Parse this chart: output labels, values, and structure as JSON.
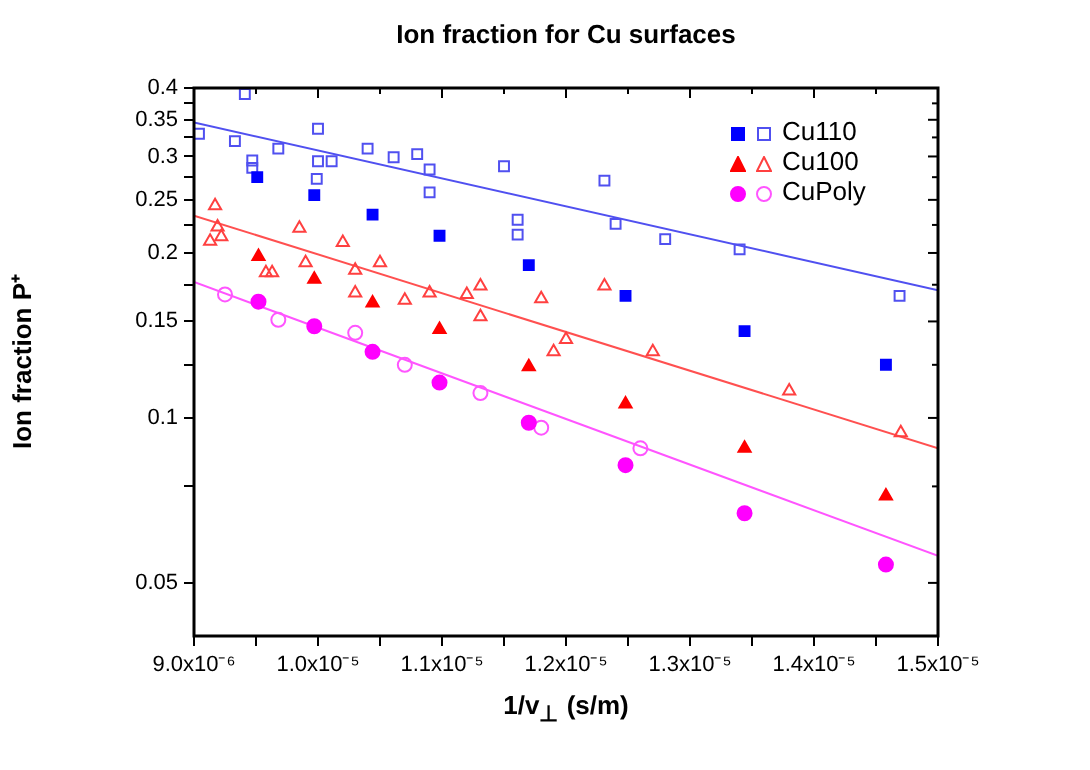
{
  "chart_data": {
    "type": "scatter",
    "title": "Ion fraction for Cu surfaces",
    "xlabel": "1/v$_{⊥}$ (s/m)",
    "ylabel": "Ion fraction P⁺",
    "log": "y",
    "legend": "top right",
    "xlim": [
      9e-06,
      1.5e-05
    ],
    "xticks": [
      {
        "value": 9e-06,
        "label": "9.0x10⁻⁶"
      },
      {
        "value": 9.5e-06,
        "label": null
      },
      {
        "value": 1e-05,
        "label": "1.0x10⁻⁵"
      },
      {
        "value": 1.05e-05,
        "label": null
      },
      {
        "value": 1.1e-05,
        "label": "1.1x10⁻⁵"
      },
      {
        "value": 1.15e-05,
        "label": null
      },
      {
        "value": 1.2e-05,
        "label": "1.2x10⁻⁵"
      },
      {
        "value": 1.25e-05,
        "label": null
      },
      {
        "value": 1.3e-05,
        "label": "1.3x10⁻⁵"
      },
      {
        "value": 1.35e-05,
        "label": null
      },
      {
        "value": 1.4e-05,
        "label": "1.4x10⁻⁵"
      },
      {
        "value": 1.45e-05,
        "label": null
      },
      {
        "value": 1.5e-05,
        "label": "1.5x10⁻⁵"
      }
    ],
    "ylim": [
      0.04,
      0.4
    ],
    "yticks": [
      0.05,
      {
        "value": 0.075,
        "label": null
      },
      0.1,
      {
        "value": 0.125,
        "label": null
      },
      0.15,
      {
        "value": 0.175,
        "label": null
      },
      0.2,
      {
        "value": 0.225,
        "label": null
      },
      0.25,
      {
        "value": 0.275,
        "label": null
      },
      0.3,
      {
        "value": 0.325,
        "label": null
      },
      0.35,
      {
        "value": 0.375,
        "label": null
      },
      0.4
    ],
    "series": [
      {
        "marker": "square",
        "color": "#0000ff",
        "x": [
          9.51e-06,
          9.97e-06,
          1.044e-05,
          1.098e-05,
          1.17e-05,
          1.248e-05,
          1.344e-05,
          1.458e-05
        ],
        "values": [
          0.275,
          0.255,
          0.235,
          0.215,
          0.19,
          0.167,
          0.144,
          0.125
        ]
      },
      {
        "name": "Cu110",
        "marker": "square",
        "color": "#5050f0",
        "x": [
          9.04e-06,
          9.41e-06,
          9.33e-06,
          9.47e-06,
          9.47e-06,
          9.68e-06,
          1e-05,
          1e-05,
          9.99e-06,
          1.011e-05,
          1.04e-05,
          1.061e-05,
          1.08e-05,
          1.09e-05,
          1.09e-05,
          1.15e-05,
          1.161e-05,
          1.161e-05,
          1.231e-05,
          1.24e-05,
          1.28e-05,
          1.34e-05,
          1.469e-05
        ],
        "values": [
          0.33,
          0.39,
          0.32,
          0.295,
          0.286,
          0.31,
          0.337,
          0.294,
          0.273,
          0.294,
          0.31,
          0.299,
          0.303,
          0.284,
          0.258,
          0.288,
          0.23,
          0.216,
          0.271,
          0.226,
          0.212,
          0.203,
          0.167
        ]
      },
      {
        "marker": "triangle",
        "color": "#ff0000",
        "x": [
          9.52e-06,
          9.97e-06,
          1.044e-05,
          1.098e-05,
          1.17e-05,
          1.248e-05,
          1.344e-05,
          1.458e-05
        ],
        "values": [
          0.197,
          0.179,
          0.162,
          0.145,
          0.124,
          0.106,
          0.088,
          0.072
        ]
      },
      {
        "name": "Cu100",
        "marker": "triangle",
        "color": "#ff4040",
        "x": [
          9.17e-06,
          9.19e-06,
          9.22e-06,
          9.13e-06,
          9.85e-06,
          9.9e-06,
          9.58e-06,
          9.63e-06,
          1.02e-05,
          1.03e-05,
          1.03e-05,
          1.05e-05,
          1.07e-05,
          1.09e-05,
          1.12e-05,
          1.131e-05,
          1.131e-05,
          1.18e-05,
          1.19e-05,
          1.2e-05,
          1.231e-05,
          1.27e-05,
          1.38e-05,
          1.47e-05
        ],
        "values": [
          0.244,
          0.223,
          0.214,
          0.21,
          0.222,
          0.192,
          0.184,
          0.184,
          0.209,
          0.186,
          0.169,
          0.192,
          0.164,
          0.169,
          0.168,
          0.174,
          0.153,
          0.165,
          0.132,
          0.139,
          0.174,
          0.132,
          0.112,
          0.094
        ]
      },
      {
        "marker": "circle",
        "color": "#ff00ff",
        "x": [
          9.52e-06,
          9.97e-06,
          1.044e-05,
          1.098e-05,
          1.17e-05,
          1.248e-05,
          1.344e-05,
          1.458e-05
        ],
        "values": [
          0.163,
          0.147,
          0.132,
          0.116,
          0.098,
          0.082,
          0.067,
          0.054
        ]
      },
      {
        "name": "CuPoly",
        "marker": "circle",
        "color": "#ff55ff",
        "x": [
          9.25e-06,
          9.68e-06,
          1.03e-05,
          1.07e-05,
          1.131e-05,
          1.18e-05,
          1.26e-05
        ],
        "values": [
          0.168,
          0.151,
          0.143,
          0.125,
          0.111,
          0.096,
          0.088
        ]
      },
      {
        "type": "line",
        "marker": "none",
        "color": "#5050f0",
        "x": [
          9e-06,
          1.5e-05
        ],
        "values": [
          0.346,
          0.171
        ]
      },
      {
        "type": "line",
        "marker": "none",
        "color": "#ff5050",
        "x": [
          9e-06,
          1.5e-05
        ],
        "values": [
          0.234,
          0.088
        ]
      },
      {
        "type": "line",
        "marker": "none",
        "color": "#ff55ff",
        "x": [
          9e-06,
          1.5e-05
        ],
        "values": [
          0.177,
          0.056
        ]
      }
    ]
  }
}
